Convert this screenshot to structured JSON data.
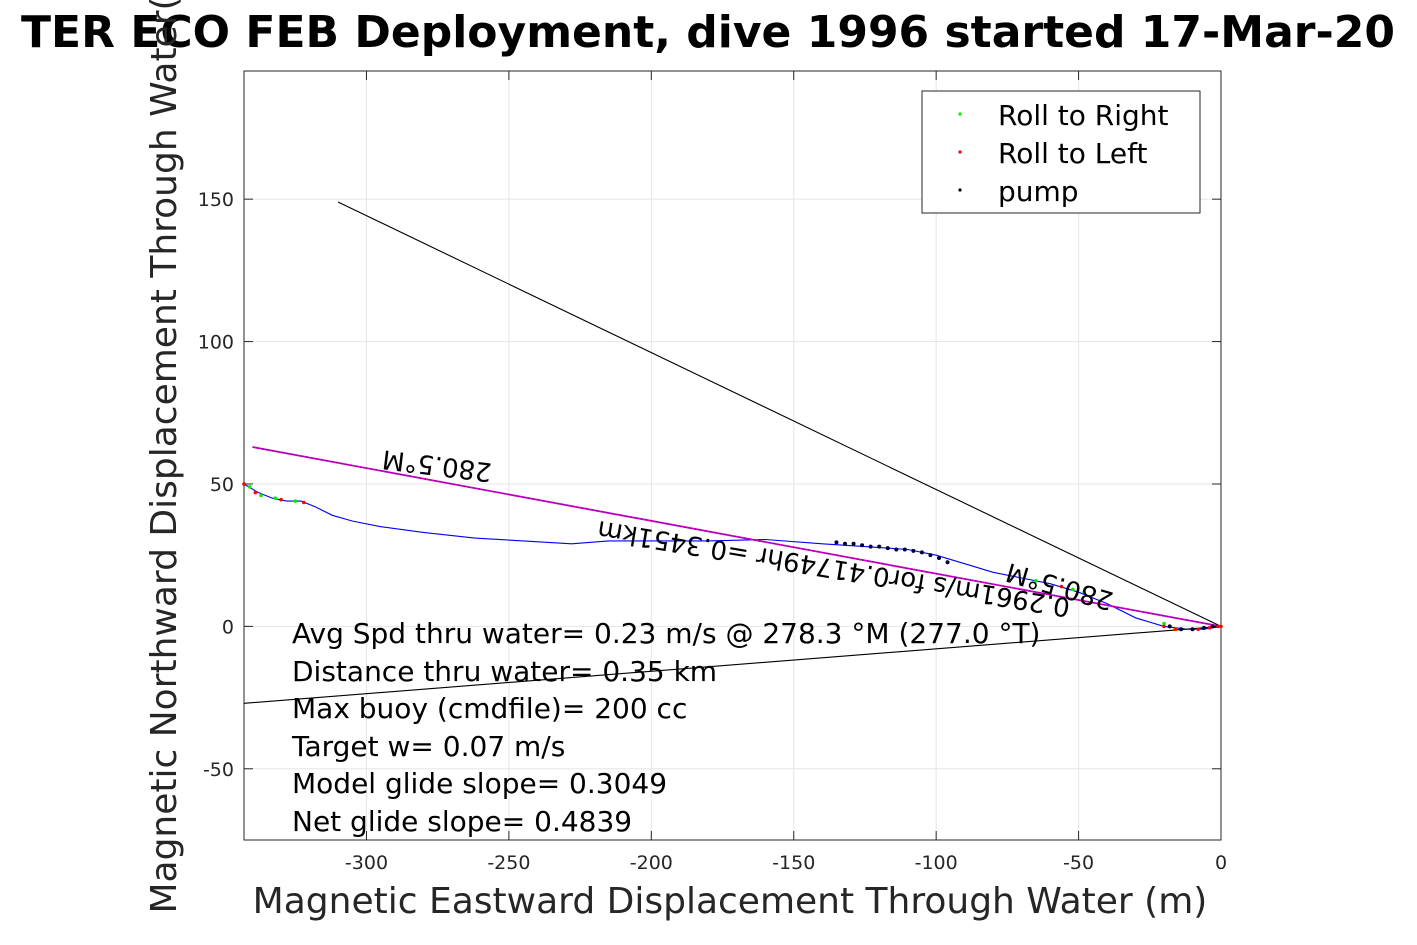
{
  "chart_data": {
    "type": "line",
    "title": "TER ECO FEB Deployment, dive 1996 started 17-Mar-20",
    "xlabel": "Magnetic Eastward Displacement Through Water (m)",
    "ylabel": "Magnetic Northward Displacement Through Water(",
    "xlim": [
      -343,
      0
    ],
    "ylim": [
      -75,
      195
    ],
    "xticks": [
      -300,
      -250,
      -200,
      -150,
      -100,
      -50,
      0
    ],
    "yticks": [
      -50,
      0,
      50,
      100,
      150
    ],
    "xtick_labels": [
      "-300",
      "-250",
      "-200",
      "-150",
      "-100",
      "-50",
      "0"
    ],
    "ytick_labels": [
      "-50",
      "0",
      "50",
      "100",
      "150"
    ],
    "grid": true,
    "legend_position": "top-right",
    "legend": [
      {
        "label": "Roll to Right",
        "color": "#00ee00"
      },
      {
        "label": "Roll to Left",
        "color": "#ff0000"
      },
      {
        "label": "pump",
        "color": "#000000"
      }
    ],
    "colors": {
      "track": "#0000ff",
      "heading_line": "#cc00cc",
      "reference": "#000000",
      "grid": "#e5e5e5"
    },
    "series": [
      {
        "x": [
          -343,
          -338,
          -333,
          -328,
          -323,
          -318,
          -312,
          -305,
          -295,
          -280,
          -262,
          -245,
          -228,
          -215,
          -200,
          -180,
          -160,
          -140,
          -125,
          -110,
          -100,
          -90,
          -80,
          -70,
          -60,
          -50,
          -40,
          -30,
          -20,
          -12,
          -6,
          0
        ],
        "y": [
          50,
          47,
          45,
          44,
          44,
          42,
          39,
          37,
          35,
          33,
          31,
          30,
          29,
          30,
          30,
          30,
          30.5,
          29,
          28,
          27,
          25,
          22,
          19,
          17,
          15,
          12,
          8,
          3,
          0,
          -1,
          -1,
          0
        ]
      },
      {
        "x": [
          -340,
          0
        ],
        "y": [
          63,
          0
        ]
      },
      {
        "x": [
          -310,
          0
        ],
        "y": [
          149,
          0
        ]
      },
      {
        "x": [
          -343,
          0
        ],
        "y": [
          -27,
          0
        ]
      }
    ],
    "roll_right_points": {
      "x": [
        -341,
        -337,
        -332,
        -325,
        -65,
        -52,
        -48,
        -20
      ],
      "y": [
        49,
        46,
        45,
        44,
        16,
        13,
        12,
        1
      ]
    },
    "roll_left_points": {
      "x": [
        -343,
        -339,
        -330,
        -322,
        -56,
        -20,
        -16,
        -8,
        -4,
        -1,
        0
      ],
      "y": [
        50,
        47,
        44.5,
        43.5,
        14,
        0,
        -1,
        -1,
        -0.5,
        0,
        0
      ]
    },
    "pump_points": {
      "x": [
        -135,
        -132,
        -129,
        -126,
        -123,
        -120,
        -117,
        -114,
        -111,
        -108,
        -105,
        -102,
        -99,
        -96,
        -18,
        -14,
        -10,
        -6,
        -3
      ],
      "y": [
        29.5,
        29,
        29,
        28.5,
        28,
        28,
        27.5,
        27,
        27,
        26.5,
        26,
        25,
        24,
        22.5,
        0,
        -1,
        -1,
        -0.5,
        0
      ]
    },
    "annotations": {
      "heading_upper": "280.5°M",
      "segment_label": "0.2961m/s for0.41749hr =0.3451km",
      "heading_lower": "280.5°M"
    },
    "stats": [
      "Avg Spd thru water=  0.23 m/s @ 278.3 °M (277.0 °T)",
      "Distance thru water=  0.35 km",
      "Max buoy (cmdfile)= 200 cc",
      "Target w= 0.07 m/s",
      "Model glide slope= 0.3049",
      "Net glide slope= 0.4839"
    ]
  }
}
